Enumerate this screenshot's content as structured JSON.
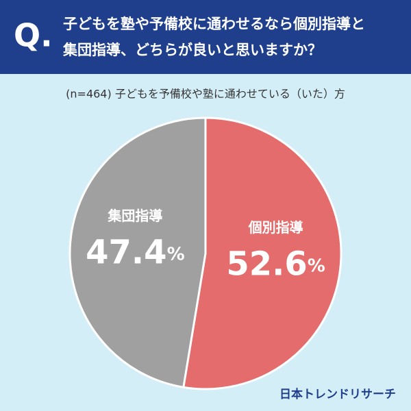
{
  "chart_data": {
    "type": "pie",
    "badge": "Q.",
    "title": [
      "子どもを塾や予備校に通わせるなら個別指導と",
      "集団指導、どちらが良いと思いますか？"
    ],
    "subtitle": "(n=464) 子どもを予備校や塾に通わせている（いた）方",
    "categories": [
      "個別指導",
      "集団指導"
    ],
    "values": [
      52.6,
      47.4
    ],
    "value_labels": [
      "52.6%",
      "47.4%"
    ],
    "colors": [
      "#e46c6d",
      "#a0a0a0"
    ],
    "source": "日本トレンドリサーチ"
  }
}
